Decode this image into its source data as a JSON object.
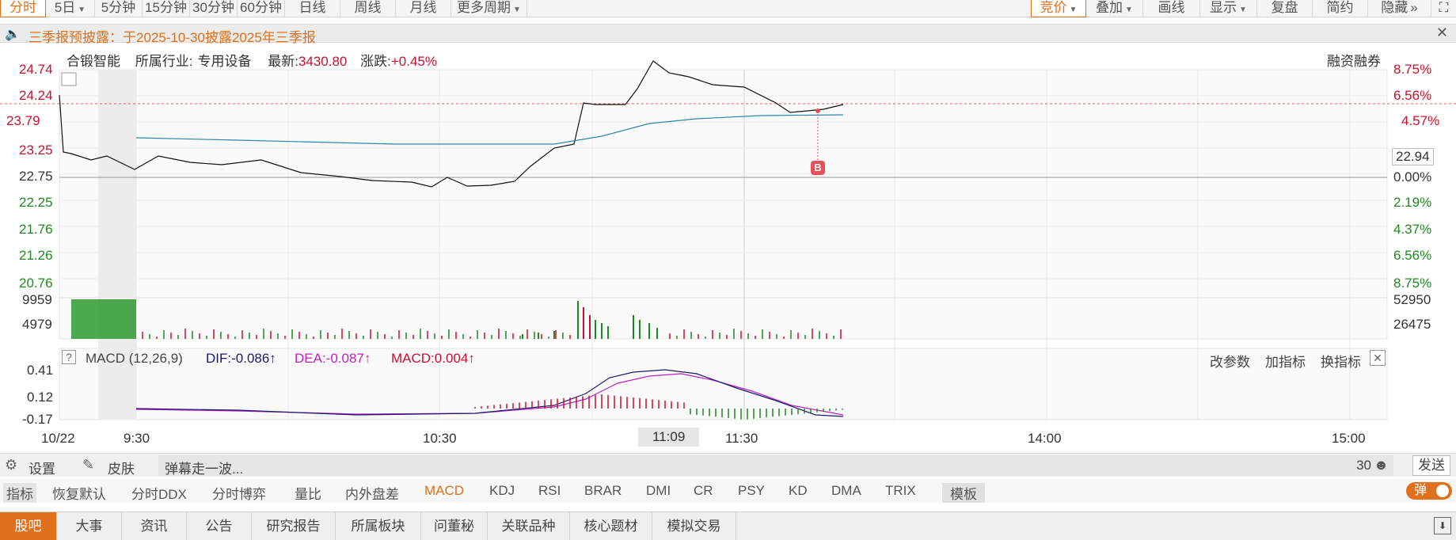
{
  "toolbar": {
    "left": [
      {
        "label": "分时",
        "active": true
      },
      {
        "label": "5日",
        "caret": true
      },
      {
        "label": "5分钟"
      },
      {
        "label": "15分钟"
      },
      {
        "label": "30分钟"
      },
      {
        "label": "60分钟"
      },
      {
        "label": "日线"
      },
      {
        "label": "周线"
      },
      {
        "label": "月线"
      },
      {
        "label": "更多周期",
        "caret": true
      }
    ],
    "right": [
      {
        "label": "竞价",
        "caret": true,
        "active": true
      },
      {
        "label": "叠加",
        "caret": true
      },
      {
        "label": "画线"
      },
      {
        "label": "显示",
        "caret": true
      },
      {
        "label": "复盘"
      },
      {
        "label": "简约"
      },
      {
        "label": "隐藏",
        "suffix": "»"
      }
    ]
  },
  "notice": {
    "text": "三季报预披露：于2025-10-30披露2025年三季报",
    "close": "✕"
  },
  "stock": {
    "name": "合锻智能",
    "industry_label": "所属行业:",
    "industry": "专用设备",
    "latest_label": "最新:",
    "latest": "3430.80",
    "change_label": "涨跌:",
    "change": "+0.45%",
    "margin": "融资融券"
  },
  "price_axis": {
    "left": [
      "24.74",
      "24.24",
      "23.79",
      "23.25",
      "22.75",
      "22.25",
      "21.76",
      "21.26",
      "20.76"
    ],
    "right": [
      "8.75%",
      "6.56%",
      "4.57%",
      "2.19%",
      "0.00%",
      "2.19%",
      "4.37%",
      "6.56%",
      "8.75%"
    ],
    "current_right": "22.94"
  },
  "volume_axis": {
    "left": [
      "9959",
      "4979"
    ],
    "right": [
      "52950",
      "26475"
    ]
  },
  "macd": {
    "help": "?",
    "label": "MACD (12,26,9)",
    "dif": "DIF:-0.086↑",
    "dea": "DEA:-0.087↑",
    "macd": "MACD:0.004↑",
    "actions": [
      "改参数",
      "加指标",
      "换指标"
    ],
    "close": "✕",
    "axis": [
      "0.41",
      "0.12",
      "-0.17"
    ]
  },
  "time_axis": {
    "date": "10/22",
    "ticks": [
      "9:30",
      "10:30",
      "11:09",
      "11:30",
      "14:00",
      "15:00"
    ]
  },
  "marker": "B",
  "status_bar": {
    "settings": "设置",
    "skin": "皮肤",
    "danmu": "弹幕走一波...",
    "count": "30",
    "send": "发送"
  },
  "indicator_tabs": [
    "指标",
    "恢复默认",
    "分时DDX",
    "分时博弈",
    "量比",
    "内外盘差",
    "MACD",
    "KDJ",
    "RSI",
    "BRAR",
    "DMI",
    "CR",
    "PSY",
    "KD",
    "DMA",
    "TRIX",
    "模板"
  ],
  "indicator_active": "MACD",
  "danmu_toggle": "弹",
  "bottom_tabs": [
    "股吧",
    "大事",
    "资讯",
    "公告",
    "研究报告",
    "所属板块",
    "问董秘",
    "关联品种",
    "核心题材",
    "模拟交易"
  ],
  "colors": {
    "accent": "#e0701a",
    "up": "#c8102e",
    "down": "#1e8a1e",
    "avg": "#2e86ab",
    "dea": "#c020c0",
    "dif": "#1a1a6e"
  }
}
